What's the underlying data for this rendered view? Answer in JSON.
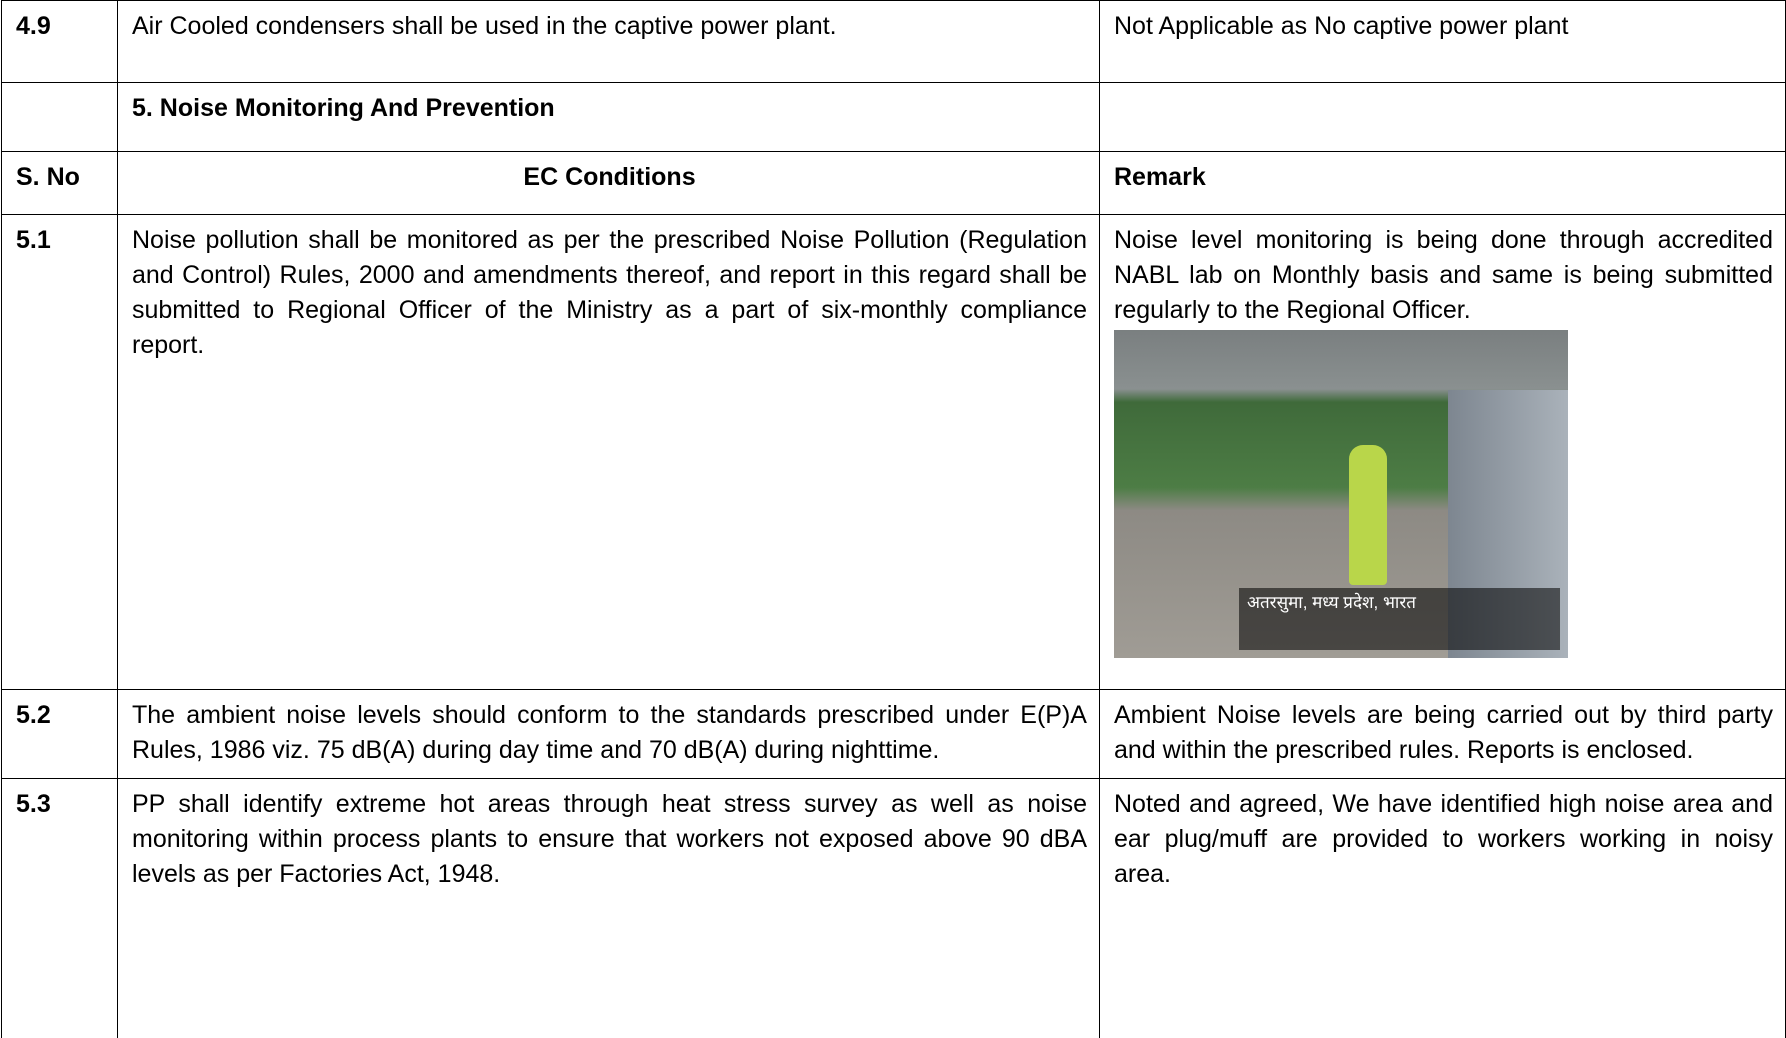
{
  "table": {
    "rows": [
      {
        "sno": "4.9",
        "condition": "Air Cooled condensers shall be used in the captive power plant.",
        "remark": "Not Applicable as No captive power plant"
      },
      {
        "condition": "5. Noise Monitoring And Prevention"
      },
      {
        "sno": "S. No",
        "condition": "EC Conditions",
        "remark": "Remark"
      },
      {
        "sno": "5.1",
        "condition": "Noise pollution shall be monitored as per the prescribed Noise Pollution (Regulation and Control) Rules, 2000 and amendments thereof, and report in this regard shall be submitted to Regional Officer of the Ministry as a part of six-monthly compliance report.",
        "remark": "Noise level monitoring is being done through accredited NABL lab on Monthly basis and same is being submitted regularly to the Regional Officer.",
        "photo_caption": "अतरसुमा, मध्य प्रदेश, भारत"
      },
      {
        "sno": "5.2",
        "condition": "The ambient noise levels should conform to the standards prescribed under E(P)A Rules, 1986 viz. 75 dB(A) during day time and 70 dB(A) during nighttime.",
        "remark": "Ambient Noise levels are being carried out by third party and within the prescribed rules. Reports is enclosed."
      },
      {
        "sno": "5.3",
        "condition": "PP shall identify extreme hot areas through heat stress survey as well as noise monitoring within process plants to ensure that workers not exposed above 90 dBA levels as per Factories Act, 1948.",
        "remark": "Noted and agreed, We have identified high noise area and ear plug/muff are provided to workers working in noisy area."
      }
    ]
  }
}
